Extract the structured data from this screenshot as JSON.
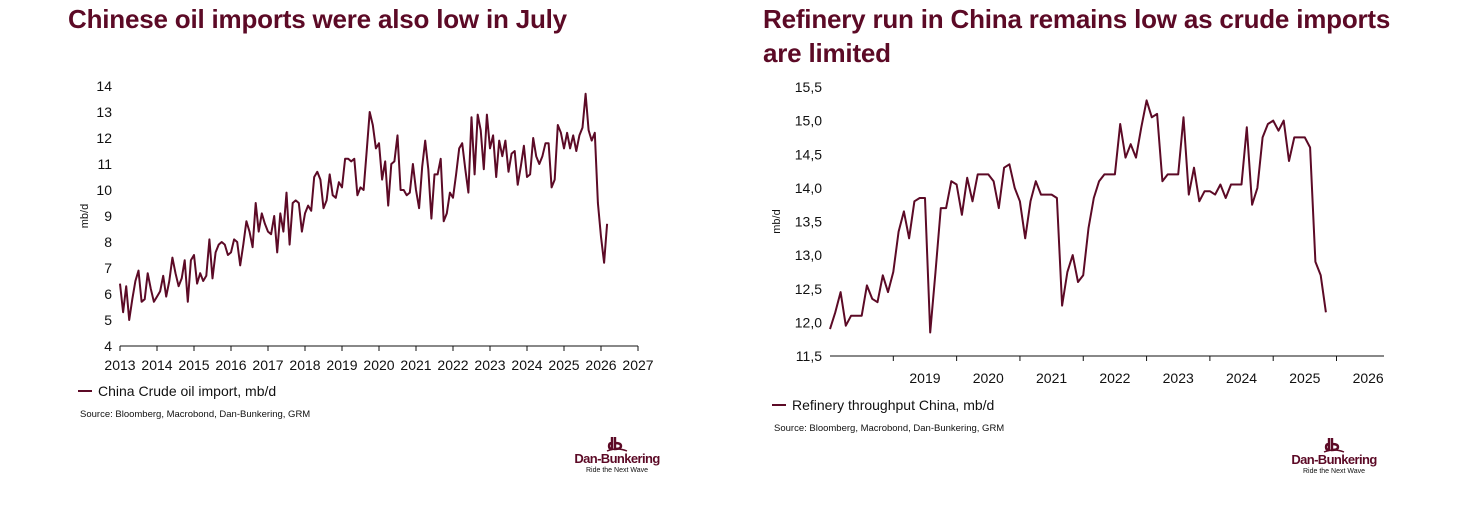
{
  "colors": {
    "title": "#5c0a26",
    "series": "#5c0a26",
    "text": "#111111"
  },
  "brand": {
    "name": "Dan-Bunkering",
    "tagline": "Ride the Next Wave",
    "icon": "db-logo-icon"
  },
  "chart_data": [
    {
      "type": "line",
      "title": "Chinese oil imports were also low in July",
      "ylabel": "mb/d",
      "xlabel": "",
      "xlim": [
        2013,
        2027
      ],
      "ylim": [
        4,
        14
      ],
      "x_ticks": [
        "2013",
        "2014",
        "2015",
        "2016",
        "2017",
        "2018",
        "2019",
        "2020",
        "2021",
        "2022",
        "2023",
        "2024",
        "2025",
        "2026",
        "2027"
      ],
      "y_ticks": [
        "4",
        "5",
        "6",
        "7",
        "8",
        "9",
        "10",
        "11",
        "12",
        "13",
        "14"
      ],
      "grid": false,
      "legend": "bottom-left",
      "source": "Source: Bloomberg, Macrobond, Dan-Bunkering, GRM",
      "series": [
        {
          "name": "China Crude oil import, mb/d",
          "start": 2013.0,
          "step": 0.08333,
          "values": [
            6.4,
            5.3,
            6.3,
            5.0,
            5.8,
            6.5,
            6.9,
            5.7,
            5.8,
            6.8,
            6.2,
            5.7,
            5.9,
            6.1,
            6.7,
            5.9,
            6.5,
            7.4,
            6.8,
            6.3,
            6.6,
            7.3,
            5.7,
            7.3,
            7.5,
            6.4,
            6.8,
            6.5,
            6.7,
            8.1,
            6.6,
            7.6,
            7.9,
            8.0,
            7.9,
            7.5,
            7.6,
            8.1,
            8.0,
            7.1,
            7.9,
            8.8,
            8.4,
            7.8,
            9.5,
            8.4,
            9.1,
            8.7,
            8.4,
            8.3,
            9.0,
            7.6,
            9.1,
            8.4,
            9.9,
            7.9,
            9.5,
            9.6,
            9.5,
            8.4,
            9.1,
            9.4,
            9.2,
            10.5,
            10.7,
            10.4,
            9.3,
            9.6,
            10.6,
            9.8,
            9.7,
            10.3,
            10.1,
            11.2,
            11.2,
            11.1,
            11.2,
            9.8,
            10.1,
            10.0,
            11.5,
            13.0,
            12.5,
            11.6,
            11.8,
            10.4,
            11.1,
            9.4,
            11.0,
            11.1,
            12.1,
            10.0,
            10.0,
            9.8,
            9.9,
            11.0,
            10.0,
            9.3,
            10.9,
            11.9,
            10.8,
            8.9,
            10.6,
            10.6,
            11.2,
            8.8,
            9.1,
            9.9,
            9.7,
            10.6,
            11.6,
            11.8,
            10.8,
            9.9,
            12.8,
            10.6,
            12.9,
            12.3,
            10.8,
            12.9,
            11.6,
            12.1,
            10.5,
            11.9,
            11.3,
            11.9,
            10.7,
            11.4,
            11.5,
            10.2,
            10.9,
            11.7,
            10.5,
            10.6,
            12.0,
            11.3,
            11.0,
            11.3,
            11.8,
            11.8,
            10.1,
            10.4,
            12.5,
            12.2,
            11.6,
            12.2,
            11.6,
            12.1,
            11.5,
            12.1,
            12.4,
            13.7,
            12.3,
            11.9,
            12.2,
            9.5,
            8.2,
            7.2,
            8.7
          ]
        }
      ]
    },
    {
      "type": "line",
      "title": "Refinery run in China remains low as crude imports are limited",
      "ylabel": "mb/d",
      "xlabel": "",
      "xlim": [
        2018.0,
        2026.75
      ],
      "ylim": [
        11.5,
        15.5
      ],
      "x_ticks": [
        "2019",
        "2020",
        "2021",
        "2022",
        "2023",
        "2024",
        "2025",
        "2026"
      ],
      "y_ticks": [
        "11,5",
        "12,0",
        "12,5",
        "13,0",
        "13,5",
        "14,0",
        "14,5",
        "15,0",
        "15,5"
      ],
      "grid": false,
      "legend": "bottom-left",
      "source": "Source: Bloomberg, Macrobond, Dan-Bunkering, GRM",
      "series": [
        {
          "name": "Refinery throughput China, mb/d",
          "start": 2018.0,
          "step": 0.08333,
          "values": [
            11.9,
            12.15,
            12.45,
            11.95,
            12.1,
            12.1,
            12.1,
            12.55,
            12.35,
            12.3,
            12.7,
            12.45,
            12.75,
            13.35,
            13.65,
            13.25,
            13.8,
            13.85,
            13.85,
            11.85,
            12.75,
            13.7,
            13.7,
            14.1,
            14.05,
            13.6,
            14.15,
            13.8,
            14.2,
            14.2,
            14.2,
            14.1,
            13.7,
            14.3,
            14.35,
            14.0,
            13.8,
            13.25,
            13.8,
            14.1,
            13.9,
            13.9,
            13.9,
            13.85,
            12.25,
            12.75,
            13.0,
            12.6,
            12.7,
            13.4,
            13.85,
            14.1,
            14.2,
            14.2,
            14.2,
            14.95,
            14.45,
            14.65,
            14.45,
            14.9,
            15.3,
            15.05,
            15.1,
            14.1,
            14.2,
            14.2,
            14.2,
            15.05,
            13.9,
            14.3,
            13.8,
            13.95,
            13.95,
            13.9,
            14.05,
            13.85,
            14.05,
            14.05,
            14.05,
            14.9,
            13.75,
            14.0,
            14.75,
            14.95,
            15.0,
            14.85,
            15.0,
            14.4,
            14.75,
            14.75,
            14.75,
            14.6,
            12.9,
            12.7,
            12.15
          ]
        }
      ]
    }
  ]
}
